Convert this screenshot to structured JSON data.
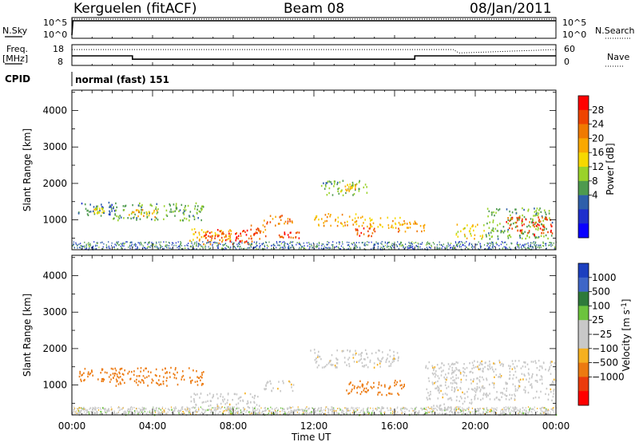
{
  "header": {
    "station": "Kerguelen (fitACF)",
    "beam": "Beam 08",
    "date": "08/Jan/2011"
  },
  "panels": {
    "nsky": {
      "left_label": "N.Sky",
      "ticks_left": [
        "10^5",
        "10^0"
      ],
      "ticks_right": [
        "10^5",
        "10^0"
      ],
      "right_label": "N.Search"
    },
    "freq": {
      "left_label_1": "Freq.",
      "left_label_2": "[MHz]",
      "ticks_left": [
        "18",
        "8"
      ],
      "ticks_right": [
        "60",
        "0"
      ],
      "right_label": "Nave"
    },
    "cpid": {
      "label": "CPID",
      "value": "normal (fast) 151"
    }
  },
  "power_colorbar": {
    "label": "Power [dB]",
    "ticks": [
      "28",
      "24",
      "20",
      "16",
      "12",
      "8",
      "4"
    ],
    "colors": [
      "#ff0000",
      "#ee4400",
      "#f07a00",
      "#f9a800",
      "#f6d800",
      "#9ad22a",
      "#4e9a4e",
      "#2e5faa",
      "#1e2fcc",
      "#0a00ff"
    ]
  },
  "velocity_colorbar": {
    "label_main": "Velocity",
    "label_unit": "[m s",
    "label_exp": "-1",
    "label_close": "]",
    "ticks": [
      "1000",
      "500",
      "100",
      "25",
      "−25",
      "−100",
      "−500",
      "−1000"
    ],
    "colors": [
      "#1c3fbf",
      "#3f66c7",
      "#2e7a3a",
      "#6cc33d",
      "#c8c8c8",
      "#c8c8c8",
      "#f5b020",
      "#ec7a10",
      "#ea3b0c",
      "#ff0000"
    ]
  },
  "axes": {
    "ylabel": "Slant Range [km]",
    "yticks": [
      "4000",
      "3000",
      "2000",
      "1000"
    ],
    "xticks": [
      "00:00",
      "04:00",
      "08:00",
      "12:00",
      "16:00",
      "20:00",
      "00:00"
    ],
    "xlabel": "Time UT"
  },
  "chart_data": [
    {
      "type": "line",
      "title": "N.Sky / N.Search",
      "xlabel": "",
      "ylabel": "N.Sky",
      "x_range_hours": [
        0,
        24
      ],
      "series": [
        {
          "name": "N.Sky",
          "x": [
            0.0,
            0.05,
            24.0
          ],
          "values": [
            1,
            100000,
            100000
          ]
        },
        {
          "name": "N.Search",
          "x": [
            0.0,
            24.0
          ],
          "values": [
            100000,
            100000
          ]
        }
      ]
    },
    {
      "type": "line",
      "title": "Freq. [MHz] / Nave",
      "xlabel": "",
      "ylabel": "Freq. [MHz]",
      "x_range_hours": [
        0,
        24
      ],
      "ylim": [
        8,
        18
      ],
      "y2lim": [
        0,
        60
      ],
      "series": [
        {
          "name": "Freq.",
          "x": [
            0.0,
            3.0,
            3.0,
            17.0,
            17.0,
            24.0
          ],
          "values": [
            12.6,
            12.6,
            11.0,
            11.0,
            12.6,
            12.6
          ]
        },
        {
          "name": "Nave",
          "x": [
            0.0,
            18.9,
            19.2,
            24.0
          ],
          "values": [
            46,
            46,
            36,
            46
          ]
        }
      ]
    },
    {
      "type": "heatmap",
      "title": "Power",
      "xlabel": "Time UT",
      "ylabel": "Slant Range [km]",
      "x_range_hours": [
        0,
        24
      ],
      "ylim": [
        180,
        4560
      ],
      "zlabel": "Power [dB]",
      "zlim": [
        0,
        32
      ],
      "echo_regions": [
        {
          "t0": 0.3,
          "t1": 2.2,
          "r0": 1100,
          "r1": 1500,
          "db": 8
        },
        {
          "t0": 1.0,
          "t1": 1.7,
          "r0": 1200,
          "r1": 1400,
          "db": 16
        },
        {
          "t0": 2.0,
          "t1": 6.5,
          "r0": 1000,
          "r1": 1500,
          "db": 12
        },
        {
          "t0": 2.8,
          "t1": 4.2,
          "r0": 1100,
          "r1": 1300,
          "db": 20
        },
        {
          "t0": 5.8,
          "t1": 8.0,
          "r0": 450,
          "r1": 800,
          "db": 20
        },
        {
          "t0": 6.5,
          "t1": 9.3,
          "r0": 350,
          "r1": 750,
          "db": 29
        },
        {
          "t0": 8.8,
          "t1": 9.6,
          "r0": 500,
          "r1": 900,
          "db": 26
        },
        {
          "t0": 9.5,
          "t1": 11.0,
          "r0": 850,
          "r1": 1150,
          "db": 26
        },
        {
          "t0": 10.2,
          "t1": 11.3,
          "r0": 450,
          "r1": 700,
          "db": 28
        },
        {
          "t0": 12.0,
          "t1": 14.5,
          "r0": 850,
          "r1": 1200,
          "db": 22
        },
        {
          "t0": 12.3,
          "t1": 14.6,
          "r0": 1700,
          "r1": 2100,
          "db": 12
        },
        {
          "t0": 13.3,
          "t1": 14.2,
          "r0": 1800,
          "r1": 2000,
          "db": 20
        },
        {
          "t0": 14.5,
          "t1": 16.5,
          "r0": 800,
          "r1": 1100,
          "db": 20
        },
        {
          "t0": 14.0,
          "t1": 15.0,
          "r0": 550,
          "r1": 800,
          "db": 28
        },
        {
          "t0": 16.0,
          "t1": 17.5,
          "r0": 700,
          "r1": 1000,
          "db": 24
        },
        {
          "t0": 19.0,
          "t1": 20.5,
          "r0": 500,
          "r1": 900,
          "db": 18
        },
        {
          "t0": 20.5,
          "t1": 23.8,
          "r0": 500,
          "r1": 1350,
          "db": 12
        },
        {
          "t0": 21.5,
          "t1": 23.8,
          "r0": 600,
          "r1": 1100,
          "db": 28
        }
      ]
    },
    {
      "type": "heatmap",
      "title": "Velocity",
      "xlabel": "Time UT",
      "ylabel": "Slant Range [km]",
      "x_range_hours": [
        0,
        24
      ],
      "ylim": [
        180,
        4560
      ],
      "zlabel": "Velocity [m s-1]",
      "zlim": [
        -1000,
        1000
      ],
      "echo_regions": [
        {
          "t0": 0.3,
          "t1": 2.2,
          "r0": 1100,
          "r1": 1500,
          "v": -150
        },
        {
          "t0": 2.0,
          "t1": 6.5,
          "r0": 1000,
          "r1": 1500,
          "v": -150
        },
        {
          "t0": 5.8,
          "t1": 9.3,
          "r0": 400,
          "r1": 800,
          "v": 0
        },
        {
          "t0": 9.5,
          "t1": 11.0,
          "r0": 850,
          "r1": 1150,
          "v": 0
        },
        {
          "t0": 11.8,
          "t1": 13.2,
          "r0": 1500,
          "r1": 2000,
          "v": 0
        },
        {
          "t0": 13.3,
          "t1": 16.2,
          "r0": 1500,
          "r1": 2000,
          "v": 0
        },
        {
          "t0": 13.5,
          "t1": 16.5,
          "r0": 750,
          "r1": 1150,
          "v": -150
        },
        {
          "t0": 17.5,
          "t1": 24.0,
          "r0": 600,
          "r1": 1700,
          "v": 0
        },
        {
          "t0": 17.8,
          "t1": 19.8,
          "r0": 300,
          "r1": 600,
          "v": 50
        },
        {
          "t0": 0.0,
          "t1": 24.0,
          "r0": 200,
          "r1": 400,
          "v": 80
        }
      ]
    }
  ]
}
